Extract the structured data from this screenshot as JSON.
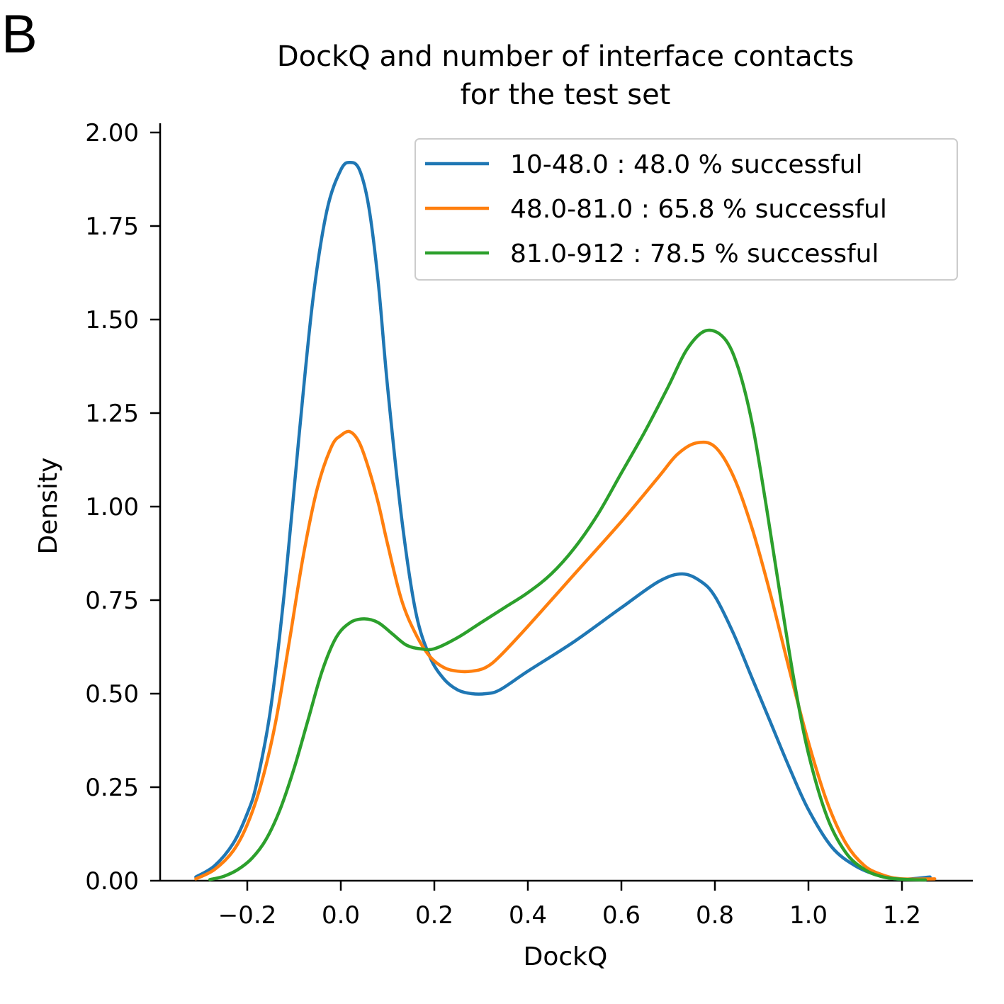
{
  "panel_label": "B",
  "chart_data": {
    "type": "line",
    "title_lines": [
      "DockQ and number of interface contacts",
      "for the test set"
    ],
    "xlabel": "DockQ",
    "ylabel": "Density",
    "xlim": [
      -0.35,
      1.35
    ],
    "ylim": [
      0,
      2.0
    ],
    "x_ticks": [
      -0.2,
      0.0,
      0.2,
      0.4,
      0.6,
      0.8,
      1.0,
      1.2
    ],
    "x_tick_labels": [
      "−0.2",
      "0.0",
      "0.2",
      "0.4",
      "0.6",
      "0.8",
      "1.0",
      "1.2"
    ],
    "y_ticks": [
      0,
      0.25,
      0.5,
      0.75,
      1.0,
      1.25,
      1.5,
      1.75,
      2.0
    ],
    "y_tick_labels": [
      "0.00",
      "0.25",
      "0.50",
      "0.75",
      "1.00",
      "1.25",
      "1.50",
      "1.75",
      "2.00"
    ],
    "grid": false,
    "legend_position": "top-right",
    "series": [
      {
        "name": "10-48.0 : 48.0 % successful",
        "color": "#1f77b4",
        "x": [
          -0.31,
          -0.27,
          -0.23,
          -0.2,
          -0.18,
          -0.15,
          -0.12,
          -0.09,
          -0.06,
          -0.03,
          0.0,
          0.02,
          0.04,
          0.06,
          0.08,
          0.1,
          0.13,
          0.16,
          0.19,
          0.22,
          0.25,
          0.28,
          0.31,
          0.34,
          0.4,
          0.5,
          0.6,
          0.68,
          0.73,
          0.77,
          0.8,
          0.84,
          0.88,
          0.92,
          0.96,
          1.0,
          1.05,
          1.1,
          1.15,
          1.2,
          1.26
        ],
        "y": [
          0.01,
          0.04,
          0.1,
          0.18,
          0.26,
          0.46,
          0.78,
          1.18,
          1.55,
          1.79,
          1.9,
          1.92,
          1.9,
          1.8,
          1.6,
          1.32,
          0.97,
          0.72,
          0.6,
          0.54,
          0.51,
          0.5,
          0.5,
          0.51,
          0.56,
          0.64,
          0.73,
          0.8,
          0.82,
          0.8,
          0.76,
          0.66,
          0.54,
          0.42,
          0.3,
          0.19,
          0.09,
          0.04,
          0.014,
          0.004,
          0.01
        ]
      },
      {
        "name": "48.0-81.0 : 65.8 % successful",
        "color": "#ff7f0e",
        "x": [
          -0.31,
          -0.27,
          -0.23,
          -0.2,
          -0.17,
          -0.14,
          -0.11,
          -0.08,
          -0.05,
          -0.02,
          0.0,
          0.02,
          0.04,
          0.06,
          0.08,
          0.1,
          0.13,
          0.16,
          0.19,
          0.22,
          0.25,
          0.28,
          0.31,
          0.34,
          0.4,
          0.5,
          0.6,
          0.68,
          0.72,
          0.76,
          0.8,
          0.84,
          0.88,
          0.92,
          0.96,
          1.0,
          1.04,
          1.08,
          1.12,
          1.16,
          1.2,
          1.27
        ],
        "y": [
          0.005,
          0.03,
          0.08,
          0.15,
          0.26,
          0.42,
          0.64,
          0.87,
          1.05,
          1.16,
          1.19,
          1.2,
          1.17,
          1.1,
          1.01,
          0.9,
          0.75,
          0.66,
          0.6,
          0.57,
          0.56,
          0.56,
          0.57,
          0.6,
          0.68,
          0.82,
          0.96,
          1.08,
          1.14,
          1.17,
          1.16,
          1.08,
          0.94,
          0.76,
          0.56,
          0.37,
          0.21,
          0.1,
          0.04,
          0.015,
          0.005,
          0.005
        ]
      },
      {
        "name": "81.0-912 : 78.5 % successful",
        "color": "#2ca02c",
        "x": [
          -0.28,
          -0.25,
          -0.22,
          -0.19,
          -0.16,
          -0.13,
          -0.1,
          -0.07,
          -0.04,
          -0.01,
          0.02,
          0.05,
          0.08,
          0.11,
          0.14,
          0.17,
          0.2,
          0.25,
          0.3,
          0.35,
          0.4,
          0.45,
          0.5,
          0.55,
          0.6,
          0.65,
          0.7,
          0.74,
          0.78,
          0.82,
          0.85,
          0.88,
          0.91,
          0.94,
          0.97,
          1.0,
          1.04,
          1.08,
          1.12,
          1.16,
          1.2,
          1.25
        ],
        "y": [
          0.003,
          0.012,
          0.03,
          0.06,
          0.11,
          0.19,
          0.3,
          0.43,
          0.56,
          0.65,
          0.69,
          0.7,
          0.69,
          0.66,
          0.63,
          0.62,
          0.62,
          0.65,
          0.69,
          0.73,
          0.77,
          0.82,
          0.89,
          0.98,
          1.09,
          1.2,
          1.32,
          1.42,
          1.47,
          1.45,
          1.37,
          1.22,
          1.0,
          0.76,
          0.53,
          0.34,
          0.17,
          0.075,
          0.03,
          0.01,
          0.004,
          0.002
        ]
      }
    ]
  }
}
